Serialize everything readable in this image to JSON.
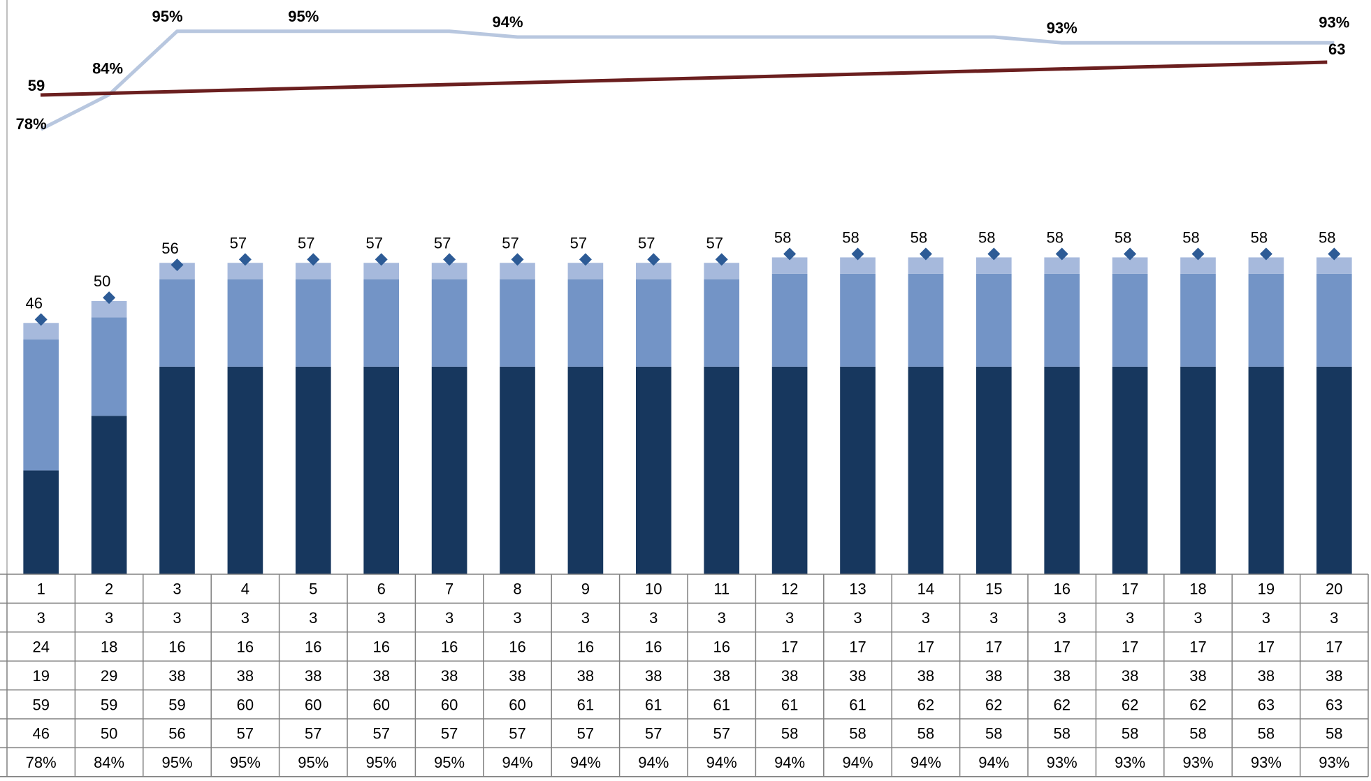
{
  "chart_data": {
    "type": "bar",
    "stacked": true,
    "x": [
      1,
      2,
      3,
      4,
      5,
      6,
      7,
      8,
      9,
      10,
      11,
      12,
      13,
      14,
      15,
      16,
      17,
      18,
      19,
      20
    ],
    "series": [
      {
        "color": "#17375e",
        "values": [
          19,
          29,
          38,
          38,
          38,
          38,
          38,
          38,
          38,
          38,
          38,
          38,
          38,
          38,
          38,
          38,
          38,
          38,
          38,
          38
        ]
      },
      {
        "color": "#7394c6",
        "values": [
          24,
          18,
          16,
          16,
          16,
          16,
          16,
          16,
          16,
          16,
          16,
          17,
          17,
          17,
          17,
          17,
          17,
          17,
          17,
          17
        ]
      },
      {
        "color": "#a6b9dc",
        "values": [
          3,
          3,
          3,
          3,
          3,
          3,
          3,
          3,
          3,
          3,
          3,
          3,
          3,
          3,
          3,
          3,
          3,
          3,
          3,
          3
        ]
      }
    ],
    "total_markers": {
      "type": "scatter",
      "marker": "diamond",
      "color": "#2d5b96",
      "values": [
        46,
        50,
        56,
        57,
        57,
        57,
        57,
        57,
        57,
        57,
        57,
        58,
        58,
        58,
        58,
        58,
        58,
        58,
        58,
        58
      ]
    },
    "line_dark": {
      "type": "line",
      "color": "#6b1f1f",
      "values": [
        59,
        59,
        59,
        60,
        60,
        60,
        60,
        60,
        61,
        61,
        61,
        61,
        61,
        62,
        62,
        62,
        62,
        62,
        63,
        63
      ],
      "labels": [
        {
          "index": 0,
          "text": "59"
        },
        {
          "index": 19,
          "text": "63"
        }
      ]
    },
    "line_light": {
      "type": "line",
      "color": "#b8c7df",
      "values_pct": [
        78,
        84,
        95,
        95,
        95,
        95,
        95,
        94,
        94,
        94,
        94,
        94,
        94,
        94,
        94,
        93,
        93,
        93,
        93,
        93
      ],
      "labels": [
        {
          "index": 0,
          "text": "78%"
        },
        {
          "index": 1,
          "text": "84%"
        },
        {
          "index": 2,
          "text": "95%"
        },
        {
          "index": 4,
          "text": "95%"
        },
        {
          "index": 7,
          "text": "94%"
        },
        {
          "index": 15,
          "text": "93%"
        },
        {
          "index": 19,
          "text": "93%"
        }
      ]
    },
    "data_table": {
      "rows": [
        [
          "1",
          "2",
          "3",
          "4",
          "5",
          "6",
          "7",
          "8",
          "9",
          "10",
          "11",
          "12",
          "13",
          "14",
          "15",
          "16",
          "17",
          "18",
          "19",
          "20"
        ],
        [
          "3",
          "3",
          "3",
          "3",
          "3",
          "3",
          "3",
          "3",
          "3",
          "3",
          "3",
          "3",
          "3",
          "3",
          "3",
          "3",
          "3",
          "3",
          "3",
          "3"
        ],
        [
          "24",
          "18",
          "16",
          "16",
          "16",
          "16",
          "16",
          "16",
          "16",
          "16",
          "16",
          "17",
          "17",
          "17",
          "17",
          "17",
          "17",
          "17",
          "17",
          "17"
        ],
        [
          "19",
          "29",
          "38",
          "38",
          "38",
          "38",
          "38",
          "38",
          "38",
          "38",
          "38",
          "38",
          "38",
          "38",
          "38",
          "38",
          "38",
          "38",
          "38",
          "38"
        ],
        [
          "59",
          "59",
          "59",
          "60",
          "60",
          "60",
          "60",
          "60",
          "61",
          "61",
          "61",
          "61",
          "61",
          "62",
          "62",
          "62",
          "62",
          "62",
          "63",
          "63"
        ],
        [
          "46",
          "50",
          "56",
          "57",
          "57",
          "57",
          "57",
          "57",
          "57",
          "57",
          "57",
          "58",
          "58",
          "58",
          "58",
          "58",
          "58",
          "58",
          "58",
          "58"
        ],
        [
          "78%",
          "84%",
          "95%",
          "95%",
          "95%",
          "95%",
          "95%",
          "94%",
          "94%",
          "94%",
          "94%",
          "94%",
          "94%",
          "94%",
          "94%",
          "93%",
          "93%",
          "93%",
          "93%",
          "93%"
        ]
      ]
    },
    "grid": false,
    "legend": "none"
  }
}
